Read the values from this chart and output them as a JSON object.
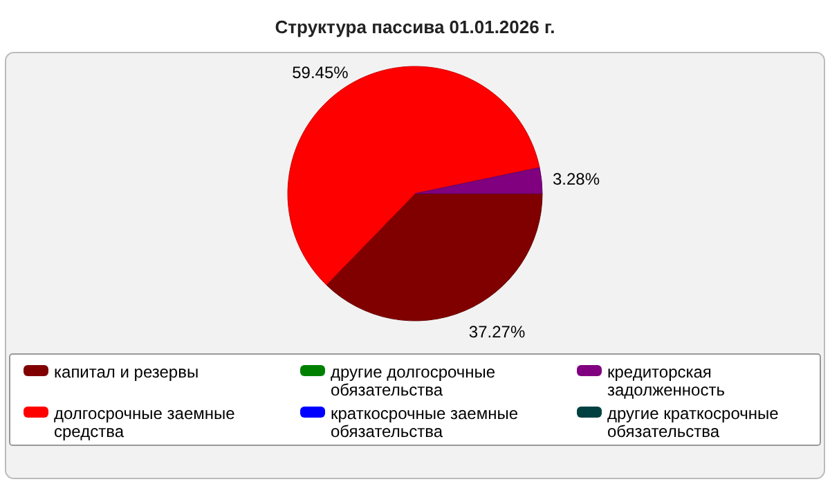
{
  "chart_data": {
    "type": "pie",
    "title": "Структура пассива 01.01.2026 г.",
    "categories": [
      "капитал и резервы",
      "долгосрочные заемные средства",
      "другие долгосрочные обязательства",
      "краткосрочные заемные обязательства",
      "кредиторская задолженность",
      "другие краткосрочные обязательства"
    ],
    "values": [
      37.27,
      59.45,
      0,
      0,
      3.28,
      0
    ],
    "colors": [
      "#800000",
      "#ff0000",
      "#008000",
      "#0000ff",
      "#800080",
      "#004040"
    ],
    "value_labels": [
      "37.27%",
      "59.45%",
      null,
      null,
      "3.28%",
      null
    ],
    "legend": "bottom"
  }
}
